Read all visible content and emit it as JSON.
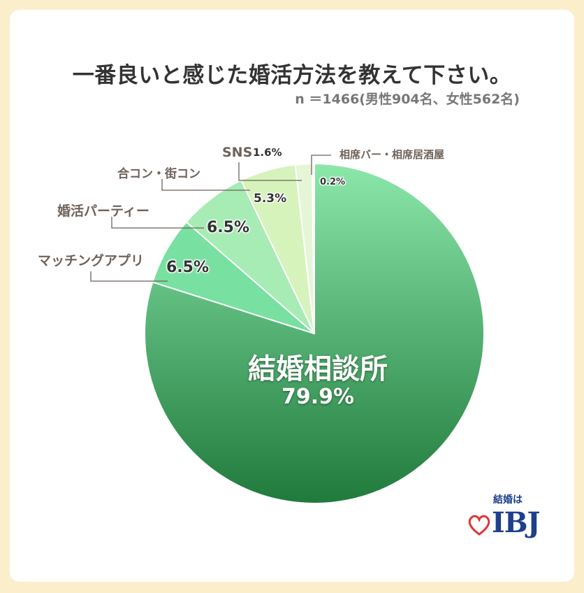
{
  "title": "一番良いと感じた婚活方法を教えて下さい。",
  "subtitle": "n ＝1466(男性904名、女性562名)",
  "chart_data": {
    "type": "pie",
    "slices": [
      {
        "label": "結婚相談所",
        "value": 79.9,
        "display": "79.9%",
        "color_top": "#8be8aa",
        "color_bottom": "#1f7a3c"
      },
      {
        "label": "マッチングアプリ",
        "value": 6.5,
        "display": "6.5%",
        "color": "#78e0a0"
      },
      {
        "label": "婚活パーティー",
        "value": 6.5,
        "display": "6.5%",
        "color": "#a6ecb4"
      },
      {
        "label": "合コン・街コン",
        "value": 5.3,
        "display": "5.3%",
        "color": "#d6f3bc"
      },
      {
        "label": "SNS",
        "value": 1.6,
        "display": "1.6%",
        "color": "#e6f5d6"
      },
      {
        "label": "相席バー・相席居酒屋",
        "value": 0.2,
        "display": "0.2%",
        "color": "#f2f8ea"
      }
    ]
  },
  "logo": {
    "top_text": "結婚は",
    "brand": "IBJ",
    "heart_color": "#d83838",
    "brand_color": "#1d3f8c"
  }
}
